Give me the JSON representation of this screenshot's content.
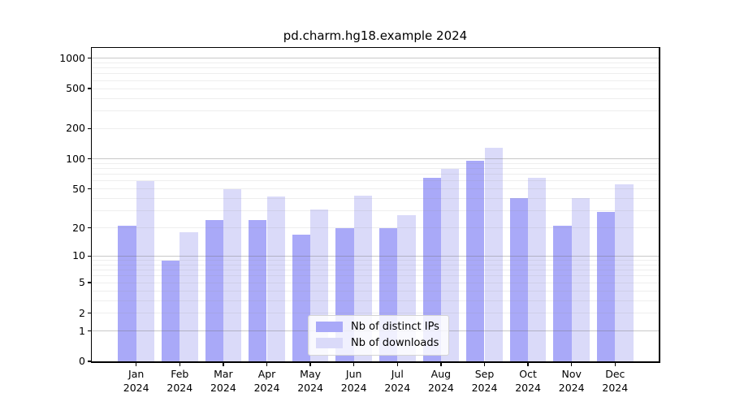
{
  "chart_data": {
    "type": "bar",
    "title": "pd.charm.hg18.example 2024",
    "categories": [
      "Jan 2024",
      "Feb 2024",
      "Mar 2024",
      "Apr 2024",
      "May 2024",
      "Jun 2024",
      "Jul 2024",
      "Aug 2024",
      "Sep 2024",
      "Oct 2024",
      "Nov 2024",
      "Dec 2024"
    ],
    "series": [
      {
        "name": "Nb of distinct IPs",
        "color": "#a9a9f8",
        "values": [
          21,
          9,
          24,
          24,
          17,
          20,
          20,
          65,
          95,
          40,
          21,
          29
        ]
      },
      {
        "name": "Nb of downloads",
        "color": "#dadaf9",
        "values": [
          60,
          18,
          50,
          42,
          31,
          43,
          27,
          80,
          130,
          65,
          40,
          56
        ]
      }
    ],
    "yaxis": {
      "scale": "log10(1+v)",
      "tick_labels": [
        0,
        1,
        2,
        5,
        10,
        20,
        50,
        100,
        200,
        500,
        1000
      ],
      "minor_steps": [
        2,
        3,
        4,
        5,
        6,
        7,
        8,
        9
      ],
      "major_grid_values": [
        1,
        10,
        100,
        1000
      ],
      "ylim": [
        0,
        1250
      ]
    },
    "legend": {
      "location": "lower center"
    },
    "colors": {
      "axis": "#000000",
      "text": "#000000",
      "legend_border": "#d4d4d4",
      "legend_background": "#ffffff"
    },
    "grid": "on"
  }
}
